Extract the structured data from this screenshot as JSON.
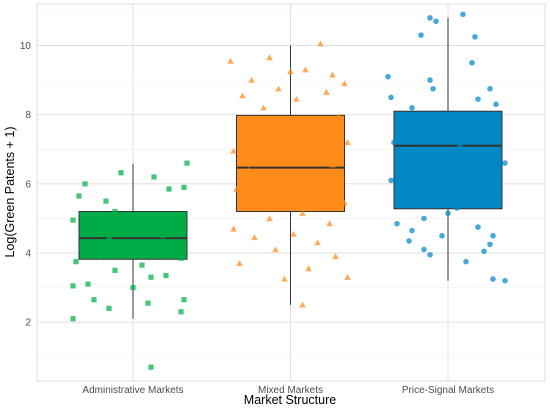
{
  "chart_data": {
    "type": "box",
    "title": "",
    "xlabel": "Market Structure",
    "ylabel": "Log(Green Patents + 1)",
    "ylim": [
      0.3,
      11.2
    ],
    "yticks": [
      2,
      4,
      6,
      8,
      10
    ],
    "grid": true,
    "legend": "none",
    "categories": [
      "Administrative Markets",
      "Mixed Markets",
      "Price-Signal Markets"
    ],
    "series": [
      {
        "category": "Administrative Markets",
        "color": "#00ad45",
        "marker": "square",
        "box": {
          "whisker_low": 2.1,
          "q1": 3.82,
          "median": 4.43,
          "q3": 5.2,
          "whisker_high": 6.58
        },
        "points": [
          [
            -0.04,
            6.32
          ],
          [
            0.07,
            6.2
          ],
          [
            0.18,
            6.6
          ],
          [
            -0.18,
            5.65
          ],
          [
            -0.16,
            6.0
          ],
          [
            0.12,
            5.85
          ],
          [
            0.17,
            5.9
          ],
          [
            -0.09,
            5.5
          ],
          [
            -0.06,
            5.2
          ],
          [
            0.0,
            5.1
          ],
          [
            0.09,
            5.0
          ],
          [
            -0.2,
            4.95
          ],
          [
            -0.12,
            4.9
          ],
          [
            0.04,
            4.8
          ],
          [
            0.15,
            4.85
          ],
          [
            -0.02,
            4.7
          ],
          [
            0.05,
            4.6
          ],
          [
            -0.14,
            4.55
          ],
          [
            0.1,
            4.5
          ],
          [
            -0.08,
            4.45
          ],
          [
            0.13,
            4.3
          ],
          [
            -0.17,
            4.2
          ],
          [
            0.02,
            4.15
          ],
          [
            -0.05,
            4.05
          ],
          [
            0.08,
            3.95
          ],
          [
            -0.11,
            3.9
          ],
          [
            0.16,
            3.85
          ],
          [
            -0.19,
            3.75
          ],
          [
            0.03,
            3.65
          ],
          [
            -0.06,
            3.5
          ],
          [
            0.11,
            3.35
          ],
          [
            0.06,
            3.3
          ],
          [
            -0.15,
            3.1
          ],
          [
            -0.2,
            3.05
          ],
          [
            0.0,
            3.0
          ],
          [
            -0.13,
            2.65
          ],
          [
            0.17,
            2.65
          ],
          [
            -0.08,
            2.4
          ],
          [
            0.05,
            2.55
          ],
          [
            -0.2,
            2.1
          ],
          [
            0.16,
            2.3
          ],
          [
            0.06,
            0.7
          ]
        ]
      },
      {
        "category": "Mixed Markets",
        "color": "#ff8b1a",
        "marker": "triangle",
        "box": {
          "whisker_low": 2.5,
          "q1": 5.2,
          "median": 6.47,
          "q3": 7.98,
          "whisker_high": 10.0
        },
        "points": [
          [
            0.1,
            10.05
          ],
          [
            -0.07,
            9.65
          ],
          [
            -0.2,
            9.55
          ],
          [
            0.05,
            9.3
          ],
          [
            0.0,
            9.25
          ],
          [
            0.14,
            9.15
          ],
          [
            -0.13,
            9.0
          ],
          [
            0.18,
            8.9
          ],
          [
            -0.04,
            8.75
          ],
          [
            0.12,
            8.65
          ],
          [
            -0.16,
            8.55
          ],
          [
            0.02,
            8.45
          ],
          [
            -0.09,
            8.2
          ],
          [
            0.16,
            7.95
          ],
          [
            0.06,
            7.7
          ],
          [
            -0.17,
            7.6
          ],
          [
            -0.02,
            7.5
          ],
          [
            0.11,
            7.4
          ],
          [
            -0.11,
            7.3
          ],
          [
            0.19,
            7.2
          ],
          [
            0.03,
            7.1
          ],
          [
            -0.19,
            6.95
          ],
          [
            0.08,
            6.8
          ],
          [
            -0.06,
            6.7
          ],
          [
            0.14,
            6.55
          ],
          [
            -0.14,
            6.4
          ],
          [
            0.0,
            6.3
          ],
          [
            0.17,
            6.2
          ],
          [
            -0.1,
            6.1
          ],
          [
            0.07,
            5.95
          ],
          [
            -0.18,
            5.85
          ],
          [
            0.12,
            5.7
          ],
          [
            -0.03,
            5.6
          ],
          [
            0.18,
            5.45
          ],
          [
            -0.15,
            5.3
          ],
          [
            0.04,
            5.15
          ],
          [
            -0.07,
            5.0
          ],
          [
            0.13,
            4.85
          ],
          [
            -0.19,
            4.7
          ],
          [
            0.01,
            4.55
          ],
          [
            -0.12,
            4.45
          ],
          [
            0.09,
            4.3
          ],
          [
            -0.05,
            4.1
          ],
          [
            0.15,
            3.9
          ],
          [
            -0.17,
            3.7
          ],
          [
            0.06,
            3.55
          ],
          [
            0.19,
            3.3
          ],
          [
            -0.02,
            3.25
          ],
          [
            0.04,
            2.5
          ]
        ]
      },
      {
        "category": "Price-Signal Markets",
        "color": "#0388c6",
        "marker": "circle",
        "box": {
          "whisker_low": 3.2,
          "q1": 5.28,
          "median": 7.1,
          "q3": 8.1,
          "whisker_high": 10.8
        },
        "points": [
          [
            0.05,
            10.9
          ],
          [
            -0.06,
            10.8
          ],
          [
            -0.04,
            10.7
          ],
          [
            0.09,
            10.25
          ],
          [
            -0.09,
            10.3
          ],
          [
            0.08,
            9.5
          ],
          [
            -0.2,
            9.1
          ],
          [
            -0.06,
            9.0
          ],
          [
            -0.05,
            8.75
          ],
          [
            0.14,
            8.75
          ],
          [
            -0.19,
            8.5
          ],
          [
            0.1,
            8.45
          ],
          [
            0.16,
            8.3
          ],
          [
            -0.12,
            8.2
          ],
          [
            0.06,
            8.0
          ],
          [
            -0.02,
            7.9
          ],
          [
            0.12,
            7.8
          ],
          [
            -0.16,
            7.7
          ],
          [
            0.01,
            7.6
          ],
          [
            0.17,
            7.5
          ],
          [
            -0.08,
            7.4
          ],
          [
            0.1,
            7.3
          ],
          [
            -0.18,
            7.2
          ],
          [
            0.04,
            7.1
          ],
          [
            -0.11,
            6.95
          ],
          [
            0.15,
            6.85
          ],
          [
            -0.03,
            6.7
          ],
          [
            0.19,
            6.6
          ],
          [
            -0.14,
            6.5
          ],
          [
            0.07,
            6.4
          ],
          [
            -0.06,
            6.3
          ],
          [
            0.12,
            6.2
          ],
          [
            -0.19,
            6.1
          ],
          [
            0.02,
            5.95
          ],
          [
            0.16,
            5.8
          ],
          [
            -0.1,
            5.7
          ],
          [
            0.09,
            5.6
          ],
          [
            -0.16,
            5.45
          ],
          [
            0.03,
            5.3
          ],
          [
            0.0,
            5.15
          ],
          [
            -0.08,
            5.0
          ],
          [
            -0.17,
            4.85
          ],
          [
            0.1,
            4.75
          ],
          [
            -0.12,
            4.65
          ],
          [
            -0.02,
            4.5
          ],
          [
            0.15,
            4.5
          ],
          [
            -0.13,
            4.35
          ],
          [
            0.14,
            4.25
          ],
          [
            -0.08,
            4.1
          ],
          [
            0.12,
            4.05
          ],
          [
            -0.06,
            3.95
          ],
          [
            0.06,
            3.75
          ],
          [
            0.15,
            3.25
          ],
          [
            0.19,
            3.2
          ]
        ]
      }
    ]
  }
}
